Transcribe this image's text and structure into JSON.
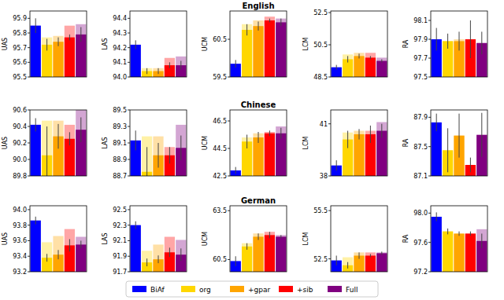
{
  "chart_data": [
    {
      "type": "bar",
      "ylabel": "UAS",
      "categories": [
        "BiAf",
        "org",
        "+gpar",
        "+sib",
        "Full"
      ],
      "colors": [
        "#0000ff",
        "#ffd700",
        "#ffa500",
        "#ff0000",
        "#800080"
      ],
      "legend": "bottom",
      "tick_labels": "y",
      "ylim": [
        95.5,
        95.95
      ],
      "yticks": [
        95.5,
        95.6,
        95.7,
        95.8,
        95.9
      ],
      "values": [
        95.85,
        95.72,
        95.74,
        95.77,
        95.79
      ],
      "upper_values": [
        95.85,
        95.77,
        95.78,
        95.85,
        95.86
      ],
      "errors": [
        0.05,
        0.04,
        0.03,
        0.02,
        0.05
      ]
    },
    {
      "type": "bar",
      "ylabel": "LAS",
      "categories": [
        "BiAf",
        "org",
        "+gpar",
        "+sib",
        "Full"
      ],
      "colors": [
        "#0000ff",
        "#ffd700",
        "#ffa500",
        "#ff0000",
        "#800080"
      ],
      "tick_labels": "y",
      "ylim": [
        94.0,
        94.45
      ],
      "yticks": [
        {
          "value": 94.0,
          "label": "94.0"
        },
        94.1,
        94.2,
        94.3,
        94.4
      ],
      "values": [
        94.22,
        94.04,
        94.04,
        94.08,
        94.08
      ],
      "upper_values": [
        94.22,
        94.06,
        94.06,
        94.13,
        94.14
      ],
      "errors": [
        0.03,
        0.02,
        0.02,
        0.02,
        0.03
      ]
    },
    {
      "type": "bar",
      "title": "English",
      "ylabel": "UCM",
      "categories": [
        "BiAf",
        "org",
        "+gpar",
        "+sib",
        "Full"
      ],
      "colors": [
        "#0000ff",
        "#ffd700",
        "#ffa500",
        "#ff0000",
        "#800080"
      ],
      "tick_labels": "y",
      "ylim": [
        59.5,
        61.25
      ],
      "yticks": [
        59.5,
        60.5
      ],
      "values": [
        59.85,
        60.75,
        60.85,
        61.0,
        60.95
      ],
      "upper_values": [
        59.85,
        60.9,
        61.0,
        61.1,
        61.05
      ],
      "errors": [
        0.1,
        0.15,
        0.12,
        0.05,
        0.1
      ]
    },
    {
      "type": "bar",
      "ylabel": "LCM",
      "categories": [
        "BiAf",
        "org",
        "+gpar",
        "+sib",
        "Full"
      ],
      "colors": [
        "#0000ff",
        "#ffd700",
        "#ffa500",
        "#ff0000",
        "#800080"
      ],
      "tick_labels": "y",
      "ylim": [
        48.5,
        52.6
      ],
      "yticks": [
        48.5,
        50.5,
        52.5
      ],
      "values": [
        49.1,
        49.6,
        49.8,
        49.7,
        49.5
      ],
      "upper_values": [
        49.1,
        49.9,
        50.0,
        50.0,
        49.7
      ],
      "errors": [
        0.15,
        0.2,
        0.15,
        0.1,
        0.1
      ]
    },
    {
      "type": "bar",
      "ylabel": "RA",
      "categories": [
        "BiAf",
        "org",
        "+gpar",
        "+sib",
        "Full"
      ],
      "colors": [
        "#0000ff",
        "#ffd700",
        "#ffa500",
        "#ff0000",
        "#800080"
      ],
      "tick_labels": "y",
      "ylim": [
        97.5,
        98.2
      ],
      "yticks": [
        97.5,
        97.7,
        97.9,
        98.1
      ],
      "values": [
        97.9,
        97.88,
        97.88,
        97.9,
        97.86
      ],
      "upper_values": [
        97.9,
        97.88,
        97.9,
        97.9,
        97.86
      ],
      "errors": [
        0.12,
        0.08,
        0.1,
        0.2,
        0.12
      ]
    },
    {
      "type": "bar",
      "ylabel": "UAS",
      "categories": [
        "BiAf",
        "org",
        "+gpar",
        "+sib",
        "Full"
      ],
      "colors": [
        "#0000ff",
        "#ffd700",
        "#ffa500",
        "#ff0000",
        "#800080"
      ],
      "tick_labels": "y",
      "ylim": [
        89.8,
        90.6
      ],
      "yticks": [
        89.8,
        {
          "value": 90.0,
          "label": "90.0"
        },
        90.2,
        90.4,
        90.6
      ],
      "values": [
        90.42,
        90.05,
        90.28,
        90.25,
        90.36
      ],
      "upper_values": [
        90.42,
        90.47,
        90.47,
        90.42,
        90.6
      ],
      "errors": [
        0.08,
        0.35,
        0.15,
        0.08,
        0.15
      ]
    },
    {
      "type": "bar",
      "ylabel": "LAS",
      "categories": [
        "BiAf",
        "org",
        "+gpar",
        "+sib",
        "Full"
      ],
      "colors": [
        "#0000ff",
        "#ffd700",
        "#ffa500",
        "#ff0000",
        "#800080"
      ],
      "tick_labels": "y",
      "ylim": [
        88.7,
        89.5
      ],
      "yticks": [
        88.7,
        88.9,
        89.1,
        89.3,
        89.5
      ],
      "values": [
        89.13,
        88.75,
        88.95,
        88.95,
        89.04
      ],
      "upper_values": [
        89.13,
        89.18,
        89.18,
        89.05,
        89.32
      ],
      "errors": [
        0.12,
        0.3,
        0.15,
        0.1,
        0.15
      ]
    },
    {
      "type": "bar",
      "title": "Chinese",
      "ylabel": "UCM",
      "categories": [
        "BiAf",
        "org",
        "+gpar",
        "+sib",
        "Full"
      ],
      "colors": [
        "#0000ff",
        "#ffd700",
        "#ffa500",
        "#ff0000",
        "#800080"
      ],
      "tick_labels": "y",
      "ylim": [
        42.5,
        47.3
      ],
      "yticks": [
        42.5,
        44.5,
        46.5
      ],
      "values": [
        42.9,
        45.0,
        45.3,
        45.6,
        45.6
      ],
      "upper_values": [
        42.9,
        45.3,
        45.6,
        45.7,
        46.1
      ],
      "errors": [
        0.25,
        0.5,
        0.4,
        0.2,
        0.4
      ]
    },
    {
      "type": "bar",
      "ylabel": "LCM",
      "categories": [
        "BiAf",
        "org",
        "+gpar",
        "+sib",
        "Full"
      ],
      "colors": [
        "#0000ff",
        "#ffd700",
        "#ffa500",
        "#ff0000",
        "#800080"
      ],
      "tick_labels": "y",
      "ylim": [
        38,
        41.8
      ],
      "yticks": [
        38,
        41
      ],
      "values": [
        38.6,
        40.1,
        40.4,
        40.4,
        40.6
      ],
      "upper_values": [
        38.6,
        40.5,
        40.6,
        40.6,
        41.1
      ],
      "errors": [
        0.3,
        0.5,
        0.3,
        0.5,
        0.4
      ]
    },
    {
      "type": "bar",
      "ylabel": "RA",
      "categories": [
        "BiAf",
        "org",
        "+gpar",
        "+sib",
        "Full"
      ],
      "colors": [
        "#0000ff",
        "#ffd700",
        "#ffa500",
        "#ff0000",
        "#800080"
      ],
      "tick_labels": "y",
      "ylim": [
        87.1,
        88.0
      ],
      "yticks": [
        87.1,
        87.5,
        87.9
      ],
      "values": [
        87.83,
        87.45,
        87.65,
        87.25,
        87.66
      ],
      "upper_values": [
        87.83,
        87.45,
        87.65,
        87.25,
        87.66
      ],
      "errors": [
        0.12,
        0.3,
        0.3,
        0.1,
        0.3
      ]
    },
    {
      "type": "bar",
      "ylabel": "UAS",
      "categories": [
        "BiAf",
        "org",
        "+gpar",
        "+sib",
        "Full"
      ],
      "colors": [
        "#0000ff",
        "#ffd700",
        "#ffa500",
        "#ff0000",
        "#800080"
      ],
      "tick_labels": "y",
      "ylim": [
        93.2,
        94.05
      ],
      "yticks": [
        93.2,
        93.4,
        93.6,
        93.8,
        {
          "value": 94.0,
          "label": "94.0"
        }
      ],
      "values": [
        93.86,
        93.38,
        93.42,
        93.54,
        93.55
      ],
      "upper_values": [
        93.86,
        93.58,
        93.66,
        93.75,
        93.65
      ],
      "errors": [
        0.05,
        0.05,
        0.06,
        0.08,
        0.05
      ]
    },
    {
      "type": "bar",
      "ylabel": "LAS",
      "categories": [
        "BiAf",
        "org",
        "+gpar",
        "+sib",
        "Full"
      ],
      "colors": [
        "#0000ff",
        "#ffd700",
        "#ffa500",
        "#ff0000",
        "#800080"
      ],
      "tick_labels": "y",
      "ylim": [
        91.7,
        92.55
      ],
      "yticks": [
        91.7,
        91.9,
        92.1,
        92.3,
        92.5
      ],
      "values": [
        92.3,
        91.82,
        91.86,
        91.95,
        91.92
      ],
      "upper_values": [
        92.3,
        91.97,
        92.05,
        92.15,
        92.11
      ],
      "errors": [
        0.05,
        0.05,
        0.05,
        0.06,
        0.08
      ]
    },
    {
      "type": "bar",
      "title": "German",
      "ylabel": "UCM",
      "categories": [
        "BiAf",
        "org",
        "+gpar",
        "+sib",
        "Full"
      ],
      "colors": [
        "#0000ff",
        "#ffd700",
        "#ffa500",
        "#ff0000",
        "#800080"
      ],
      "tick_labels": "y",
      "ylim": [
        59.75,
        63.8
      ],
      "yticks": [
        60.5,
        63.5
      ],
      "values": [
        60.4,
        61.3,
        61.9,
        62.0,
        61.9
      ],
      "upper_values": [
        60.4,
        61.5,
        62.1,
        62.2,
        62.0
      ],
      "errors": [
        0.3,
        0.2,
        0.2,
        0.2,
        0.1
      ]
    },
    {
      "type": "bar",
      "ylabel": "LCM",
      "categories": [
        "BiAf",
        "org",
        "+gpar",
        "+sib",
        "Full"
      ],
      "colors": [
        "#0000ff",
        "#ffd700",
        "#ffa500",
        "#ff0000",
        "#800080"
      ],
      "tick_labels": "y",
      "ylim": [
        51.7,
        55.8
      ],
      "yticks": [
        52.5,
        55.5
      ],
      "values": [
        52.4,
        52.1,
        52.7,
        52.7,
        52.85
      ],
      "upper_values": [
        52.4,
        52.6,
        52.9,
        52.9,
        52.9
      ],
      "errors": [
        0.3,
        0.2,
        0.2,
        0.1,
        0.1
      ]
    },
    {
      "type": "bar",
      "ylabel": "RA",
      "categories": [
        "BiAf",
        "org",
        "+gpar",
        "+sib",
        "Full"
      ],
      "colors": [
        "#0000ff",
        "#ffd700",
        "#ffa500",
        "#ff0000",
        "#800080"
      ],
      "tick_labels": "y",
      "ylim": [
        97.2,
        98.1
      ],
      "yticks": [
        97.2,
        97.6,
        {
          "value": 98.0,
          "label": "98.0"
        }
      ],
      "values": [
        97.95,
        97.75,
        97.72,
        97.72,
        97.62
      ],
      "upper_values": [
        97.95,
        97.75,
        97.72,
        97.72,
        97.78
      ],
      "errors": [
        0.06,
        0.04,
        0.03,
        0.03,
        0.1
      ]
    }
  ]
}
